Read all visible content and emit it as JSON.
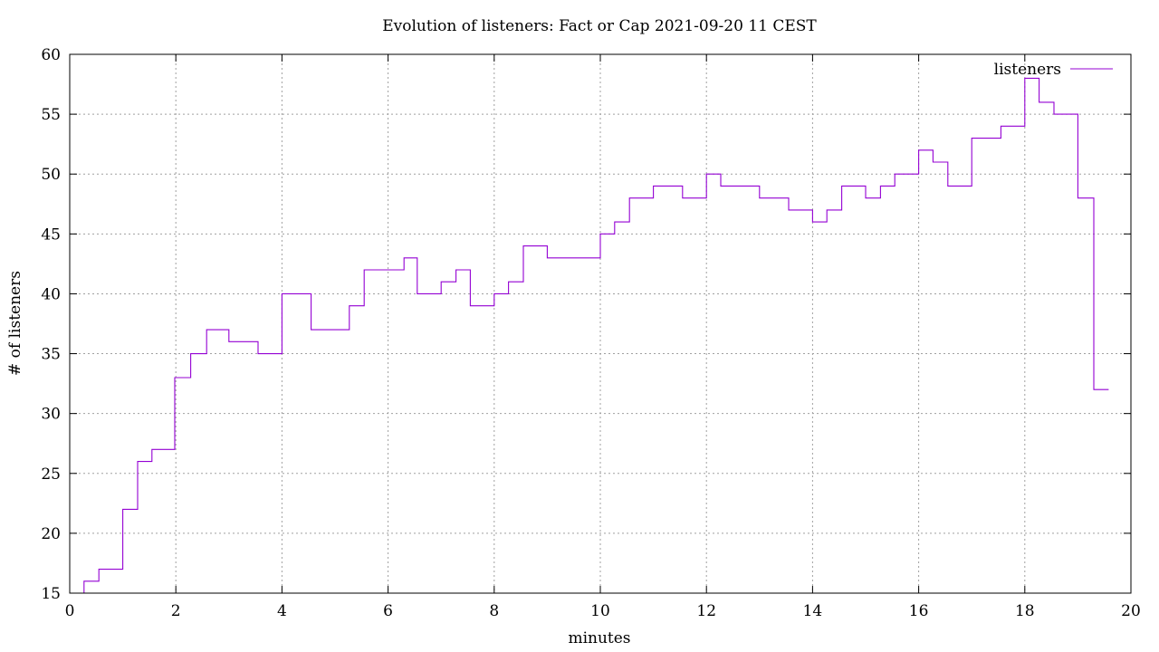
{
  "chart_data": {
    "type": "line",
    "title": "Evolution of listeners: Fact or Cap 2021-09-20 11 CEST",
    "xlabel": "minutes",
    "ylabel": "# of listeners",
    "xlim": [
      0,
      20
    ],
    "ylim": [
      15,
      60
    ],
    "xticks": [
      "0",
      "2",
      "4",
      "6",
      "8",
      "10",
      "12",
      "14",
      "16",
      "18",
      "20"
    ],
    "yticks": [
      "15",
      "20",
      "25",
      "30",
      "35",
      "40",
      "45",
      "50",
      "55",
      "60"
    ],
    "grid": true,
    "legend": "top-right",
    "step": true,
    "series": [
      {
        "name": "listeners",
        "color": "#9400d3",
        "points": [
          [
            0.25,
            15
          ],
          [
            0.27,
            16
          ],
          [
            0.55,
            17
          ],
          [
            1.0,
            22
          ],
          [
            1.28,
            26
          ],
          [
            1.55,
            27
          ],
          [
            1.98,
            33
          ],
          [
            2.28,
            35
          ],
          [
            2.58,
            37
          ],
          [
            3.0,
            36
          ],
          [
            3.55,
            35
          ],
          [
            4.0,
            40
          ],
          [
            4.55,
            37
          ],
          [
            5.27,
            39
          ],
          [
            5.55,
            42
          ],
          [
            6.3,
            43
          ],
          [
            6.55,
            40
          ],
          [
            7.0,
            41
          ],
          [
            7.28,
            42
          ],
          [
            7.55,
            39
          ],
          [
            8.0,
            40
          ],
          [
            8.27,
            41
          ],
          [
            8.55,
            44
          ],
          [
            9.0,
            43
          ],
          [
            10.0,
            45
          ],
          [
            10.27,
            46
          ],
          [
            10.55,
            48
          ],
          [
            11.0,
            49
          ],
          [
            11.55,
            48
          ],
          [
            12.0,
            50
          ],
          [
            12.27,
            49
          ],
          [
            13.0,
            48
          ],
          [
            13.55,
            47
          ],
          [
            14.0,
            46
          ],
          [
            14.27,
            47
          ],
          [
            14.55,
            49
          ],
          [
            15.0,
            48
          ],
          [
            15.28,
            49
          ],
          [
            15.55,
            50
          ],
          [
            16.0,
            52
          ],
          [
            16.27,
            51
          ],
          [
            16.55,
            49
          ],
          [
            17.0,
            53
          ],
          [
            17.55,
            54
          ],
          [
            18.0,
            58
          ],
          [
            18.27,
            56
          ],
          [
            18.55,
            55
          ],
          [
            19.0,
            48
          ],
          [
            19.3,
            32
          ],
          [
            19.58,
            32
          ]
        ]
      }
    ]
  }
}
